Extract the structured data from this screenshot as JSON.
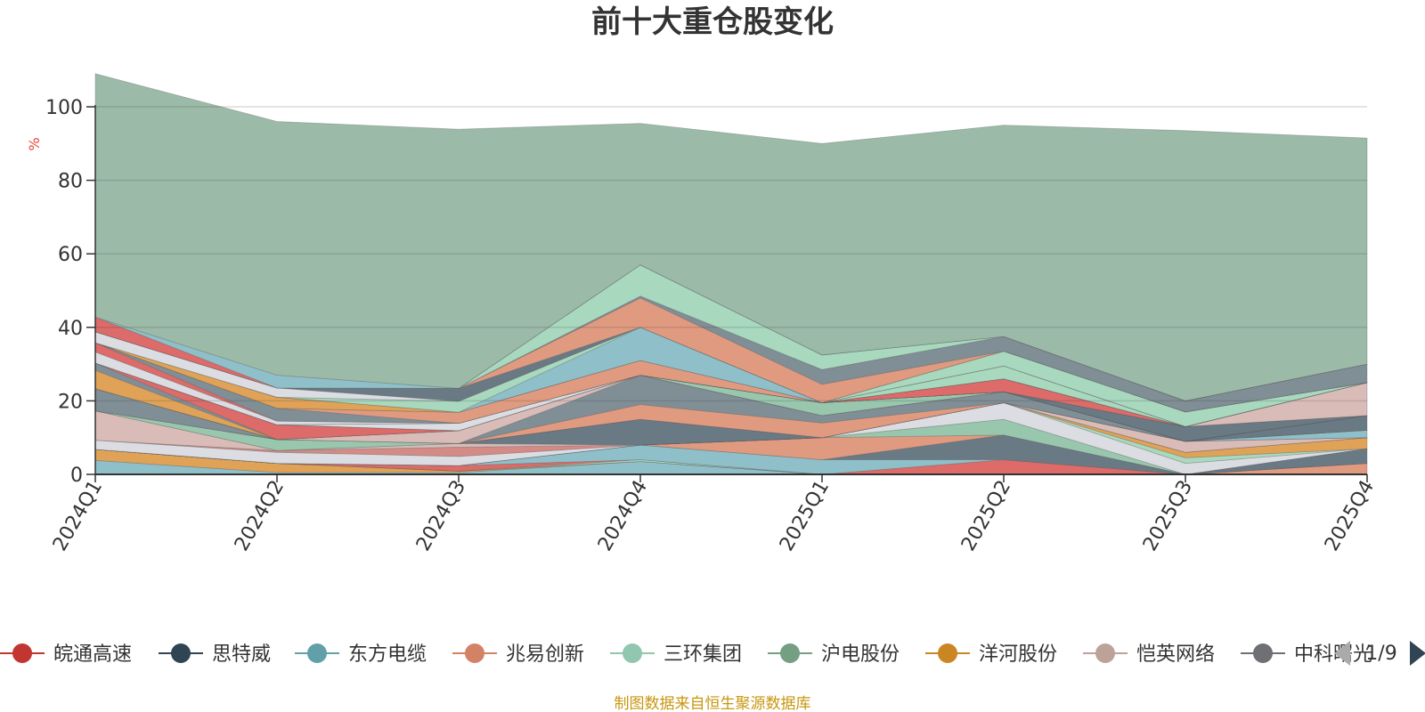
{
  "chart_data": {
    "type": "area",
    "stacked": true,
    "title": "前十大重仓股变化",
    "ylabel": "%",
    "xlabel": "",
    "ylim": [
      0,
      100
    ],
    "yticks": [
      "0",
      "20",
      "40",
      "60",
      "80",
      "100"
    ],
    "grid": true,
    "categories": [
      "2024Q1",
      "2024Q2",
      "2024Q3",
      "2024Q4",
      "2025Q1",
      "2025Q2",
      "2025Q3",
      "2025Q4"
    ],
    "series": [
      {
        "name": "",
        "color": "#8fbfc8",
        "values": [
          3.8,
          0.5,
          0.5,
          3.5,
          0.0,
          0.0,
          0.0,
          0.0
        ]
      },
      {
        "name": "",
        "color": "#dfa257",
        "values": [
          3.0,
          2.5,
          0.4,
          0.0,
          0.0,
          0.0,
          0.0,
          0.0
        ]
      },
      {
        "name": "",
        "color": "#e09a80",
        "values": [
          0.0,
          0.0,
          0.0,
          0.0,
          0.0,
          0.0,
          0.0,
          3.0
        ]
      },
      {
        "name": "",
        "color": "#a8d8be",
        "values": [
          0.0,
          0.0,
          0.0,
          0.5,
          0.0,
          0.0,
          0.0,
          0.0
        ]
      },
      {
        "name": "",
        "color": "#dc6b69",
        "values": [
          0.0,
          0.0,
          1.5,
          0.0,
          0.0,
          4.0,
          0.0,
          0.0
        ]
      },
      {
        "name": "",
        "color": "#8fbfc8",
        "values": [
          0.0,
          0.0,
          0.0,
          4.0,
          4.0,
          0.0,
          0.0,
          0.0
        ]
      },
      {
        "name": "",
        "color": "#6a7a85",
        "values": [
          0.0,
          0.0,
          0.0,
          0.0,
          0.0,
          6.7,
          0.0,
          4.0
        ]
      },
      {
        "name": "",
        "color": "#e09a80",
        "values": [
          0.0,
          0.0,
          0.0,
          0.0,
          6.0,
          0.0,
          0.0,
          0.0
        ]
      },
      {
        "name": "",
        "color": "#99c7ad",
        "values": [
          0.0,
          0.0,
          0.0,
          0.0,
          0.0,
          4.3,
          0.0,
          0.0
        ]
      },
      {
        "name": "",
        "color": "#dbdde2",
        "values": [
          0.0,
          0.0,
          0.0,
          0.0,
          0.0,
          4.5,
          3.0,
          0.0
        ]
      },
      {
        "name": "",
        "color": "#a8d8be",
        "values": [
          0.0,
          0.0,
          0.0,
          0.0,
          0.0,
          0.0,
          1.5,
          0.0
        ]
      },
      {
        "name": "",
        "color": "#dfa257",
        "values": [
          0.0,
          0.0,
          0.0,
          0.0,
          0.0,
          0.0,
          1.5,
          3.0
        ]
      },
      {
        "name": "",
        "color": "#dbdde2",
        "values": [
          2.5,
          3.0,
          2.5,
          0.0,
          0.0,
          0.0,
          0.0,
          0.0
        ]
      },
      {
        "name": "",
        "color": "#d48b86",
        "values": [
          0.0,
          0.5,
          2.5,
          0.0,
          0.0,
          0.0,
          0.0,
          0.0
        ]
      },
      {
        "name": "",
        "color": "#d9bcb8",
        "values": [
          8.0,
          0.0,
          1.0,
          0.0,
          0.0,
          0.0,
          3.0,
          0.0
        ]
      },
      {
        "name": "",
        "color": "#6a7a85",
        "values": [
          0.0,
          0.0,
          0.0,
          7.0,
          0.0,
          0.0,
          0.0,
          0.0
        ]
      },
      {
        "name": "",
        "color": "#99c7ad",
        "values": [
          0.0,
          3.0,
          0.0,
          0.0,
          0.0,
          0.0,
          0.0,
          0.0
        ]
      },
      {
        "name": "",
        "color": "#8fbfc8",
        "values": [
          0.0,
          0.0,
          0.0,
          0.0,
          0.0,
          0.0,
          0.0,
          2.0
        ]
      },
      {
        "name": "",
        "color": "#e09a80",
        "values": [
          0.0,
          0.0,
          0.0,
          4.0,
          4.0,
          0.0,
          0.0,
          0.0
        ]
      },
      {
        "name": "",
        "color": "#808e96",
        "values": [
          6.0,
          0.0,
          0.0,
          8.0,
          2.0,
          3.0,
          0.0,
          0.0
        ]
      },
      {
        "name": "",
        "color": "#d9bcb8",
        "values": [
          0.0,
          0.0,
          3.5,
          0.0,
          0.0,
          0.0,
          0.0,
          0.0
        ]
      },
      {
        "name": "",
        "color": "#6a7a85",
        "values": [
          0.0,
          0.0,
          0.0,
          0.0,
          0.0,
          0.0,
          0.0,
          4.0
        ]
      },
      {
        "name": "",
        "color": "#99c7ad",
        "values": [
          0.0,
          0.0,
          0.0,
          0.0,
          3.5,
          0.0,
          0.0,
          0.0
        ]
      },
      {
        "name": "",
        "color": "#dfa257",
        "values": [
          5.0,
          0.0,
          0.0,
          0.0,
          0.0,
          0.0,
          0.0,
          0.0
        ]
      },
      {
        "name": "",
        "color": "#808e96",
        "values": [
          2.0,
          0.0,
          0.0,
          0.0,
          0.0,
          0.0,
          0.0,
          0.0
        ]
      },
      {
        "name": "",
        "color": "#dc6b69",
        "values": [
          0.0,
          4.0,
          0.0,
          0.0,
          0.0,
          0.0,
          0.0,
          0.0
        ]
      },
      {
        "name": "",
        "color": "#8fbfc8",
        "values": [
          0.0,
          0.0,
          0.0,
          0.0,
          0.0,
          0.0,
          0.0,
          0.0
        ]
      },
      {
        "name": "",
        "color": "#6a7a85",
        "values": [
          0.0,
          0.0,
          0.0,
          0.0,
          0.0,
          0.0,
          4.0,
          0.0
        ]
      },
      {
        "name": "",
        "color": "#dbdde2",
        "values": [
          0.0,
          0.0,
          2.0,
          0.0,
          0.0,
          0.0,
          0.0,
          0.0
        ]
      },
      {
        "name": "",
        "color": "#d9bcb8",
        "values": [
          0.0,
          0.0,
          0.0,
          0.0,
          0.0,
          0.0,
          0.0,
          9.0
        ]
      },
      {
        "name": "",
        "color": "#dc6b69",
        "values": [
          0.0,
          0.0,
          0.0,
          0.0,
          0.0,
          3.5,
          0.0,
          0.0
        ]
      },
      {
        "name": "",
        "color": "#dbdde2",
        "values": [
          3.0,
          1.0,
          0.0,
          0.0,
          0.0,
          0.0,
          0.0,
          0.0
        ]
      },
      {
        "name": "",
        "color": "#dc6b69",
        "values": [
          2.5,
          0.0,
          0.0,
          0.0,
          0.0,
          0.0,
          0.0,
          0.0
        ]
      },
      {
        "name": "",
        "color": "#808e96",
        "values": [
          0.0,
          3.5,
          0.0,
          0.0,
          0.0,
          0.0,
          0.0,
          0.0
        ]
      },
      {
        "name": "",
        "color": "#e09a80",
        "values": [
          0.0,
          0.0,
          3.0,
          4.0,
          0.0,
          0.0,
          0.0,
          0.0
        ]
      },
      {
        "name": "",
        "color": "#a8d8be",
        "values": [
          0.0,
          0.0,
          0.0,
          0.0,
          0.0,
          3.5,
          0.0,
          0.0
        ]
      },
      {
        "name": "",
        "color": "#dfa257",
        "values": [
          0.0,
          3.0,
          0.0,
          0.0,
          0.0,
          0.0,
          0.0,
          0.0
        ]
      },
      {
        "name": "",
        "color": "#8fbfc8",
        "values": [
          0.0,
          0.0,
          0.0,
          9.0,
          0.0,
          0.0,
          0.0,
          0.0
        ]
      },
      {
        "name": "",
        "color": "#a8d8be",
        "values": [
          0.0,
          0.0,
          3.0,
          0.0,
          0.0,
          4.0,
          4.0,
          0.0
        ]
      },
      {
        "name": "",
        "color": "#dbdde2",
        "values": [
          3.0,
          2.5,
          0.0,
          0.0,
          0.0,
          0.0,
          0.0,
          0.0
        ]
      },
      {
        "name": "",
        "color": "#6a7a85",
        "values": [
          0.0,
          0.0,
          3.5,
          0.0,
          0.0,
          0.0,
          0.0,
          0.0
        ]
      },
      {
        "name": "",
        "color": "#e09a80",
        "values": [
          0.0,
          0.0,
          0.0,
          8.0,
          5.0,
          0.0,
          0.0,
          0.0
        ]
      },
      {
        "name": "",
        "color": "#808e96",
        "values": [
          0.0,
          0.0,
          0.0,
          0.5,
          4.0,
          4.0,
          3.0,
          5.0
        ]
      },
      {
        "name": "",
        "color": "#a8d8be",
        "values": [
          0.0,
          0.0,
          0.0,
          8.5,
          4.0,
          0.0,
          0.0,
          0.0
        ]
      },
      {
        "name": "",
        "color": "#dc6b69",
        "values": [
          4.0,
          0.0,
          0.0,
          0.0,
          0.0,
          0.0,
          0.0,
          0.0
        ]
      },
      {
        "name": "",
        "color": "#8fbfc8",
        "values": [
          0.0,
          3.5,
          0.0,
          0.0,
          0.0,
          0.0,
          0.0,
          0.0
        ]
      },
      {
        "name": "",
        "color": "#9bbaa8",
        "values": [
          66.2,
          69.0,
          70.5,
          38.5,
          57.5,
          57.5,
          73.5,
          61.5
        ]
      }
    ],
    "legend": {
      "position": "bottom",
      "page": "1/9",
      "items": [
        {
          "name": "皖通高速",
          "color": "#c23531"
        },
        {
          "name": "思特威",
          "color": "#2f4554"
        },
        {
          "name": "东方电缆",
          "color": "#61a0a8"
        },
        {
          "name": "兆易创新",
          "color": "#d48265"
        },
        {
          "name": "三环集团",
          "color": "#91c7ae"
        },
        {
          "name": "沪电股份",
          "color": "#749f83"
        },
        {
          "name": "洋河股份",
          "color": "#ca8622"
        },
        {
          "name": "恺英网络",
          "color": "#bda29a"
        },
        {
          "name": "中科曙光",
          "color": "#6e7074"
        }
      ]
    }
  },
  "source_note": "制图数据来自恒生聚源数据库"
}
